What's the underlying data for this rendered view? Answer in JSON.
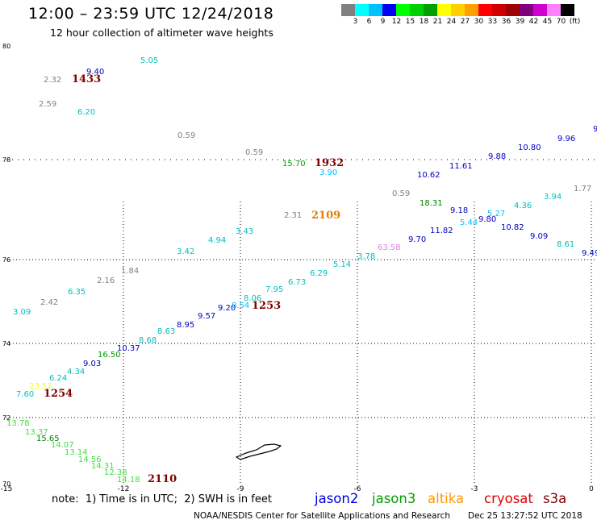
{
  "title": "12:00 – 23:59 UTC 12/24/2018",
  "subtitle": "12 hour collection of altimeter wave heights",
  "colorbar": {
    "colors": [
      "#808080",
      "#00ffff",
      "#00c0ff",
      "#0000ff",
      "#00ff00",
      "#00d000",
      "#00a000",
      "#ffff00",
      "#ffd000",
      "#ffa000",
      "#ff0000",
      "#d00000",
      "#a00000",
      "#800080",
      "#d000d0",
      "#ff80ff",
      "#000000"
    ],
    "labels": [
      "",
      "3",
      "6",
      "9",
      "12",
      "15",
      "18",
      "21",
      "24",
      "27",
      "30",
      "33",
      "36",
      "39",
      "42",
      "45",
      "70",
      "(ft)"
    ]
  },
  "axes": {
    "y_ticks": [
      "80",
      "78",
      "76",
      "74",
      "72",
      "70"
    ],
    "x_ticks": [
      "-15",
      "-12",
      "-9",
      "-6",
      "-3",
      "0"
    ]
  },
  "readings": [
    {
      "t": "9.40",
      "c": "#0000c0"
    },
    {
      "t": "5.05",
      "c": "#00c0c0"
    },
    {
      "t": "2.32",
      "c": "#808080"
    },
    {
      "t": "1433",
      "c": "#800000"
    },
    {
      "t": "2.59",
      "c": "#808080"
    },
    {
      "t": "6.20",
      "c": "#00c0c0"
    },
    {
      "t": "0.59",
      "c": "#808080"
    },
    {
      "t": "0.59",
      "c": "#808080"
    },
    {
      "t": "15.70",
      "c": "#00a000"
    },
    {
      "t": "1932",
      "c": "#800000"
    },
    {
      "t": "3.90",
      "c": "#00c0ff"
    },
    {
      "t": "9.88",
      "c": "#0000c0"
    },
    {
      "t": "10.80",
      "c": "#0000c0"
    },
    {
      "t": "9.96",
      "c": "#0000c0"
    },
    {
      "t": "9",
      "c": "#0000c0"
    },
    {
      "t": "10.62",
      "c": "#0000c0"
    },
    {
      "t": "11.61",
      "c": "#0000c0"
    },
    {
      "t": "1.77",
      "c": "#808080"
    },
    {
      "t": "3.94",
      "c": "#00c0c0"
    },
    {
      "t": "4.36",
      "c": "#00c0c0"
    },
    {
      "t": "0.59",
      "c": "#808080"
    },
    {
      "t": "18.31",
      "c": "#008000"
    },
    {
      "t": "9.18",
      "c": "#0000c0"
    },
    {
      "t": "5.27",
      "c": "#00c0ff"
    },
    {
      "t": "5.44",
      "c": "#00c0ff"
    },
    {
      "t": "9.80",
      "c": "#0000c0"
    },
    {
      "t": "10.82",
      "c": "#0000c0"
    },
    {
      "t": "2.31",
      "c": "#808080"
    },
    {
      "t": "2109",
      "c": "#e08000"
    },
    {
      "t": "11.82",
      "c": "#0000c0"
    },
    {
      "t": "9.09",
      "c": "#0000c0"
    },
    {
      "t": "9.70",
      "c": "#0000c0"
    },
    {
      "t": "63.58",
      "c": "#e080e0"
    },
    {
      "t": "8.61",
      "c": "#00c0c0"
    },
    {
      "t": "9.49",
      "c": "#0000c0"
    },
    {
      "t": "3.43",
      "c": "#00c0c0"
    },
    {
      "t": "4.94",
      "c": "#00c0c0"
    },
    {
      "t": "3.42",
      "c": "#00c0c0"
    },
    {
      "t": "3.78",
      "c": "#00c0c0"
    },
    {
      "t": "5.14",
      "c": "#00c0c0"
    },
    {
      "t": "6.29",
      "c": "#00c0c0"
    },
    {
      "t": "6.73",
      "c": "#00c0c0"
    },
    {
      "t": "1.84",
      "c": "#808080"
    },
    {
      "t": "7.95",
      "c": "#00c0c0"
    },
    {
      "t": "8.06",
      "c": "#00c0c0"
    },
    {
      "t": "2.16",
      "c": "#808080"
    },
    {
      "t": "6.35",
      "c": "#00c0c0"
    },
    {
      "t": "1253",
      "c": "#800000"
    },
    {
      "t": "9.20",
      "c": "#0000c0"
    },
    {
      "t": "8.54",
      "c": "#00c0ff"
    },
    {
      "t": "2.42",
      "c": "#808080"
    },
    {
      "t": "9.57",
      "c": "#0000c0"
    },
    {
      "t": "3.09",
      "c": "#00c0c0"
    },
    {
      "t": "8.95",
      "c": "#0000c0"
    },
    {
      "t": "8.63",
      "c": "#00c0c0"
    },
    {
      "t": "8.68",
      "c": "#00c0c0"
    },
    {
      "t": "10.37",
      "c": "#0000c0"
    },
    {
      "t": "16.50",
      "c": "#00a000"
    },
    {
      "t": "9.03",
      "c": "#0000c0"
    },
    {
      "t": "4.34",
      "c": "#00c0c0"
    },
    {
      "t": "6.24",
      "c": "#00c0c0"
    },
    {
      "t": "23.57",
      "c": "#ffff00"
    },
    {
      "t": "7.60",
      "c": "#00c0c0"
    },
    {
      "t": "1254",
      "c": "#800000"
    },
    {
      "t": "13.78",
      "c": "#40e040"
    },
    {
      "t": "13.37",
      "c": "#40e040"
    },
    {
      "t": "15.65",
      "c": "#008000"
    },
    {
      "t": "14.07",
      "c": "#40e040"
    },
    {
      "t": "13.14",
      "c": "#40e040"
    },
    {
      "t": "14.56",
      "c": "#40e040"
    },
    {
      "t": "14.31",
      "c": "#40e040"
    },
    {
      "t": "12.38",
      "c": "#40e040"
    },
    {
      "t": "14.18",
      "c": "#40e040"
    },
    {
      "t": "2110",
      "c": "#800000"
    }
  ],
  "note": "note:  1) Time is in UTC;  2) SWH is in feet",
  "satellites": [
    {
      "name": "jason2",
      "color": "#0000e0"
    },
    {
      "name": "jason3",
      "color": "#00a000"
    },
    {
      "name": "altika",
      "color": "#ff9900"
    },
    {
      "name": "cryosat",
      "color": "#e00000"
    },
    {
      "name": "s3a",
      "color": "#800000"
    }
  ],
  "footer": "NOAA/NESDIS Center for Satellite Applications and Research",
  "timestamp": "Dec 25 13:27:52 UTC 2018"
}
